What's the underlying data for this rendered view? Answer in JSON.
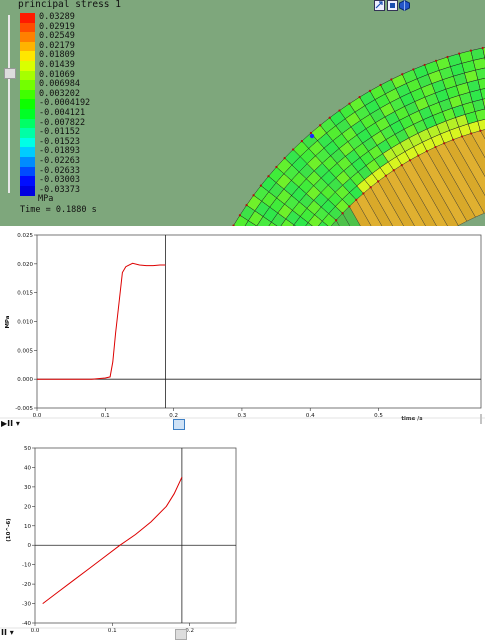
{
  "viewport": {
    "legend": {
      "title": "principal stress 1",
      "unit": "MPa",
      "time": "Time = 0.1880 s",
      "entries": [
        {
          "value": "0.03289",
          "color": "#ff1a00"
        },
        {
          "value": "0.02919",
          "color": "#ff4d00"
        },
        {
          "value": "0.02549",
          "color": "#ff8000"
        },
        {
          "value": "0.02179",
          "color": "#ffb300"
        },
        {
          "value": "0.01809",
          "color": "#ffe600"
        },
        {
          "value": "0.01439",
          "color": "#d9ff00"
        },
        {
          "value": "0.01069",
          "color": "#a6ff00"
        },
        {
          "value": "0.006984",
          "color": "#73ff00"
        },
        {
          "value": "0.003202",
          "color": "#40ff00"
        },
        {
          "value": "-0.0004192",
          "color": "#0dff00"
        },
        {
          "value": "-0.004121",
          "color": "#00ff26"
        },
        {
          "value": "-0.007822",
          "color": "#00ff66"
        },
        {
          "value": "-0.01152",
          "color": "#00ffa6"
        },
        {
          "value": "-0.01523",
          "color": "#00ffe6"
        },
        {
          "value": "-0.01893",
          "color": "#00ccff"
        },
        {
          "value": "-0.02263",
          "color": "#008cff"
        },
        {
          "value": "-0.02633",
          "color": "#004cff"
        },
        {
          "value": "-0.03003",
          "color": "#000dff"
        },
        {
          "value": "-0.03373",
          "color": "#0000e0"
        }
      ]
    },
    "toolbar": [
      "view-icon",
      "rotate-icon",
      "solid-view-icon"
    ]
  },
  "chart_data": [
    {
      "type": "line",
      "title": "",
      "xlabel": "time /s",
      "ylabel": "MPa",
      "xlim": [
        0,
        0.65
      ],
      "ylim": [
        -0.005,
        0.025
      ],
      "x_ticks": [
        "0.0",
        "0.1",
        "0.2",
        "0.3",
        "0.4",
        "0.5"
      ],
      "y_ticks": [
        "-0.005",
        "0.000",
        "0.005",
        "0.010",
        "0.015",
        "0.020",
        "0.025"
      ],
      "cursor_x": 0.188,
      "series": [
        {
          "color": "#dd0000",
          "x": [
            0.0,
            0.02,
            0.05,
            0.08,
            0.1,
            0.107,
            0.111,
            0.115,
            0.12,
            0.125,
            0.13,
            0.14,
            0.15,
            0.16,
            0.17,
            0.18,
            0.188
          ],
          "y": [
            0.0,
            0.0,
            0.0,
            0.0,
            0.0002,
            0.0004,
            0.003,
            0.008,
            0.0132,
            0.0185,
            0.0195,
            0.0201,
            0.0198,
            0.0197,
            0.0197,
            0.0198,
            0.0198
          ]
        }
      ]
    },
    {
      "type": "line",
      "title": "",
      "xlabel": "",
      "ylabel": "(10^-6)",
      "xlim": [
        0,
        0.26
      ],
      "ylim": [
        -40,
        50
      ],
      "x_ticks": [
        "0.0",
        "0.1",
        "0.2"
      ],
      "y_ticks": [
        "-40",
        "-30",
        "-20",
        "-10",
        "0",
        "10",
        "20",
        "30",
        "40",
        "50"
      ],
      "cursor_x": 0.19,
      "series": [
        {
          "color": "#dd0000",
          "x": [
            0.01,
            0.03,
            0.05,
            0.07,
            0.09,
            0.11,
            0.13,
            0.15,
            0.17,
            0.18,
            0.19
          ],
          "y": [
            -30,
            -24,
            -18,
            -12,
            -6,
            0,
            5.5,
            12,
            20,
            26.5,
            35
          ]
        }
      ]
    }
  ],
  "controls": {
    "play1": "▶II ▾",
    "play2": "II ▾"
  }
}
